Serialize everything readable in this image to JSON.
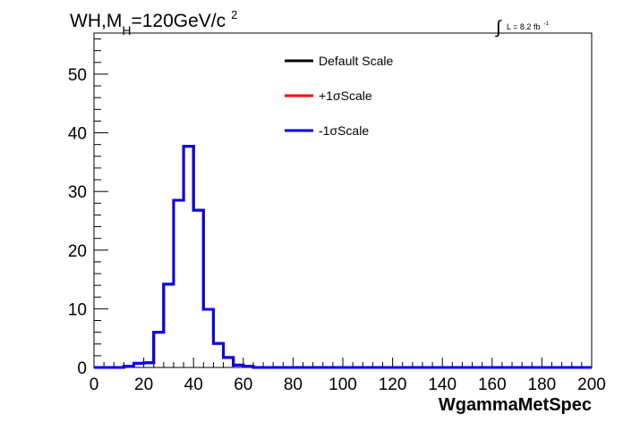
{
  "chart_data": {
    "type": "line",
    "title_main": "WH,M",
    "title_sub": "H",
    "title_tail": "=120GeV/c",
    "title_sup": "2",
    "lumi_prefix": "L = 8.2 fb",
    "lumi_sup": "-1",
    "xlabel": "WgammaMetSpec",
    "ylabel": "",
    "xlim": [
      0,
      200
    ],
    "ylim": [
      0,
      57
    ],
    "x_ticks": [
      0,
      20,
      40,
      60,
      80,
      100,
      120,
      140,
      160,
      180,
      200
    ],
    "y_ticks": [
      0,
      10,
      20,
      30,
      40,
      50
    ],
    "bin_width": 4,
    "bin_edges_start": 0,
    "legend_position": "top-center",
    "grid": false,
    "series": [
      {
        "name": "Default Scale",
        "color": "#000000",
        "values": [
          0,
          0,
          0,
          0.2,
          0.7,
          0.8,
          6.0,
          14.2,
          28.5,
          37.7,
          26.8,
          9.9,
          4.1,
          1.7,
          0.4,
          0.2,
          0,
          0,
          0,
          0,
          0,
          0,
          0,
          0,
          0,
          0,
          0,
          0,
          0,
          0,
          0,
          0,
          0,
          0,
          0,
          0,
          0,
          0,
          0,
          0,
          0,
          0,
          0,
          0,
          0,
          0,
          0,
          0,
          0,
          0
        ]
      },
      {
        "name": "+1σScale",
        "color": "#ff0000",
        "values": [
          0,
          0,
          0,
          0.2,
          0.7,
          0.8,
          6.0,
          14.2,
          28.5,
          37.7,
          26.8,
          9.9,
          4.1,
          1.7,
          0.4,
          0.2,
          0,
          0,
          0,
          0,
          0,
          0,
          0,
          0,
          0,
          0,
          0,
          0,
          0,
          0,
          0,
          0,
          0,
          0,
          0,
          0,
          0,
          0,
          0,
          0,
          0,
          0,
          0,
          0,
          0,
          0,
          0,
          0,
          0,
          0
        ]
      },
      {
        "name": "-1σScale",
        "color": "#0000ee",
        "values": [
          0,
          0,
          0,
          0.2,
          0.7,
          0.8,
          6.0,
          14.2,
          28.5,
          37.7,
          26.8,
          9.9,
          4.1,
          1.7,
          0.4,
          0.2,
          0,
          0,
          0,
          0,
          0,
          0,
          0,
          0,
          0,
          0,
          0,
          0,
          0,
          0,
          0,
          0,
          0,
          0,
          0,
          0,
          0,
          0,
          0,
          0,
          0,
          0,
          0,
          0,
          0,
          0,
          0,
          0,
          0,
          0
        ]
      }
    ]
  }
}
